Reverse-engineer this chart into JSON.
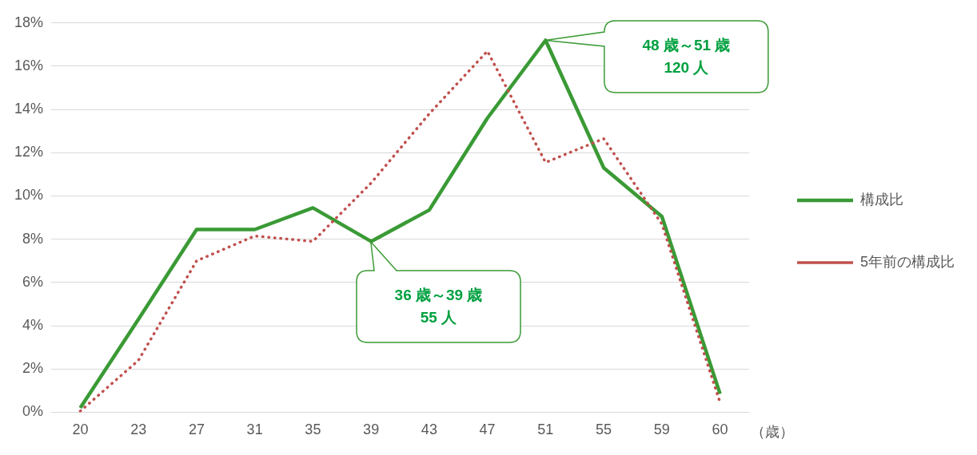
{
  "chart_data": {
    "type": "line",
    "xlabel": "（歳）",
    "categories": [
      "20",
      "23",
      "27",
      "31",
      "35",
      "39",
      "43",
      "47",
      "51",
      "55",
      "59",
      "60"
    ],
    "series": [
      {
        "name": "構成比",
        "color": "#3a9a35",
        "line_style": "solid",
        "values": [
          0.2,
          4.3,
          8.45,
          8.45,
          9.45,
          7.9,
          9.35,
          13.6,
          17.2,
          11.3,
          9.05,
          0.85
        ]
      },
      {
        "name": "5年前の構成比",
        "color": "#c0504d",
        "line_style": "dotted",
        "values": [
          0.05,
          2.4,
          7.0,
          8.15,
          7.9,
          10.6,
          13.8,
          16.7,
          11.55,
          12.65,
          8.7,
          0.45
        ]
      }
    ],
    "ylim": [
      0,
      18
    ],
    "yticks": [
      {
        "value": 0,
        "label": "0%"
      },
      {
        "value": 2,
        "label": "2%"
      },
      {
        "value": 4,
        "label": "4%"
      },
      {
        "value": 6,
        "label": "6%"
      },
      {
        "value": 8,
        "label": "8%"
      },
      {
        "value": 10,
        "label": "10%"
      },
      {
        "value": 12,
        "label": "12%"
      },
      {
        "value": 14,
        "label": "14%"
      },
      {
        "value": 16,
        "label": "16%"
      },
      {
        "value": 18,
        "label": "18%"
      }
    ],
    "grid": "y",
    "legend": "right",
    "marker": "none",
    "annotations": [
      "48 歳～51 歳\n120 人",
      "36 歳～39 歳\n55 人"
    ]
  }
}
